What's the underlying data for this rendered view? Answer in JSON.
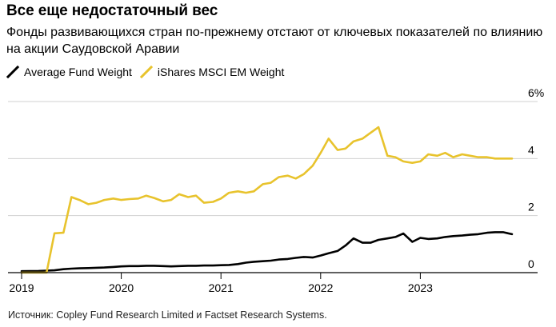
{
  "title": "Все еще недостаточный вес",
  "subtitle": "Фонды развивающихся стран по-прежнему отстают от ключевых показателей по влиянию на акции Саудовской Аравии",
  "source": "Источник: Copley Fund Research Limited и Factset Research Systems.",
  "colors": {
    "average": "#000000",
    "ishares": "#e8c32d",
    "grid": "#d0d0d0",
    "axis": "#000000"
  },
  "chart_data": {
    "type": "line",
    "title": "Все еще недостаточный вес",
    "xlabel": "",
    "ylabel": "",
    "xlim": [
      2019.0,
      2024.0
    ],
    "ylim": [
      0,
      6
    ],
    "y_ticks": [
      {
        "value": 0,
        "label": "0"
      },
      {
        "value": 2,
        "label": "2"
      },
      {
        "value": 4,
        "label": "4"
      },
      {
        "value": 6,
        "label": "6%"
      }
    ],
    "x_ticks": [
      {
        "value": 2019,
        "label": "2019"
      },
      {
        "value": 2020,
        "label": "2020"
      },
      {
        "value": 2021,
        "label": "2021"
      },
      {
        "value": 2022,
        "label": "2022"
      },
      {
        "value": 2023,
        "label": "2023"
      }
    ],
    "grid": true,
    "legend": "top-left",
    "series": [
      {
        "name": "Average Fund Weight",
        "color": "#000000",
        "x": [
          2019.0,
          2019.17,
          2019.25,
          2019.33,
          2019.42,
          2019.5,
          2019.58,
          2019.67,
          2019.75,
          2019.83,
          2019.92,
          2020.0,
          2020.08,
          2020.17,
          2020.25,
          2020.33,
          2020.42,
          2020.5,
          2020.58,
          2020.67,
          2020.75,
          2020.83,
          2020.92,
          2021.0,
          2021.08,
          2021.17,
          2021.25,
          2021.33,
          2021.42,
          2021.5,
          2021.58,
          2021.67,
          2021.75,
          2021.83,
          2021.92,
          2022.0,
          2022.08,
          2022.17,
          2022.25,
          2022.33,
          2022.42,
          2022.5,
          2022.58,
          2022.67,
          2022.75,
          2022.83,
          2022.92,
          2023.0,
          2023.08,
          2023.17,
          2023.25,
          2023.33,
          2023.42,
          2023.5,
          2023.58,
          2023.67,
          2023.75,
          2023.83,
          2023.92
        ],
        "values": [
          0.05,
          0.06,
          0.07,
          0.08,
          0.12,
          0.14,
          0.15,
          0.16,
          0.17,
          0.18,
          0.2,
          0.22,
          0.23,
          0.23,
          0.24,
          0.24,
          0.23,
          0.22,
          0.23,
          0.24,
          0.24,
          0.25,
          0.25,
          0.26,
          0.27,
          0.3,
          0.35,
          0.38,
          0.4,
          0.42,
          0.46,
          0.48,
          0.52,
          0.55,
          0.53,
          0.6,
          0.68,
          0.76,
          0.95,
          1.2,
          1.05,
          1.05,
          1.15,
          1.2,
          1.25,
          1.37,
          1.08,
          1.22,
          1.18,
          1.2,
          1.25,
          1.28,
          1.3,
          1.33,
          1.35,
          1.4,
          1.42,
          1.42,
          1.35
        ]
      },
      {
        "name": "iShares MSCI EM Weight",
        "color": "#e8c32d",
        "x": [
          2019.0,
          2019.17,
          2019.25,
          2019.33,
          2019.42,
          2019.5,
          2019.58,
          2019.67,
          2019.75,
          2019.83,
          2019.92,
          2020.0,
          2020.08,
          2020.17,
          2020.25,
          2020.33,
          2020.42,
          2020.5,
          2020.58,
          2020.67,
          2020.75,
          2020.83,
          2020.92,
          2021.0,
          2021.08,
          2021.17,
          2021.25,
          2021.33,
          2021.42,
          2021.5,
          2021.58,
          2021.67,
          2021.75,
          2021.83,
          2021.92,
          2022.0,
          2022.08,
          2022.17,
          2022.25,
          2022.33,
          2022.42,
          2022.5,
          2022.58,
          2022.67,
          2022.75,
          2022.83,
          2022.92,
          2023.0,
          2023.08,
          2023.17,
          2023.25,
          2023.33,
          2023.42,
          2023.5,
          2023.58,
          2023.67,
          2023.75,
          2023.83,
          2023.92
        ],
        "values": [
          0.0,
          0.0,
          0.0,
          1.38,
          1.4,
          2.65,
          2.55,
          2.4,
          2.45,
          2.55,
          2.6,
          2.55,
          2.58,
          2.6,
          2.7,
          2.62,
          2.5,
          2.55,
          2.75,
          2.65,
          2.7,
          2.45,
          2.48,
          2.6,
          2.8,
          2.85,
          2.8,
          2.85,
          3.1,
          3.15,
          3.35,
          3.4,
          3.3,
          3.45,
          3.75,
          4.2,
          4.7,
          4.3,
          4.35,
          4.6,
          4.7,
          4.9,
          5.1,
          4.1,
          4.05,
          3.9,
          3.85,
          3.9,
          4.15,
          4.1,
          4.2,
          4.05,
          4.15,
          4.1,
          4.05,
          4.05,
          4.0,
          4.0,
          4.0
        ]
      }
    ]
  }
}
